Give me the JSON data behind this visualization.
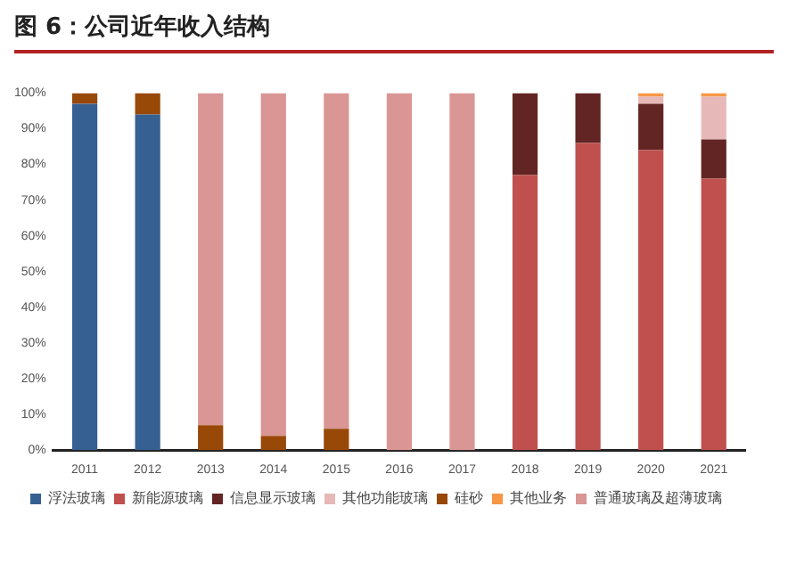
{
  "chart_data": {
    "type": "bar",
    "title": "图 6：公司近年收入结构",
    "stacked": true,
    "legend": "bottom",
    "grid": false,
    "categories": [
      "2011",
      "2012",
      "2013",
      "2014",
      "2015",
      "2016",
      "2017",
      "2018",
      "2019",
      "2020",
      "2021"
    ],
    "series": [
      {
        "name": "浮法玻璃",
        "color": "#376092",
        "values": [
          97,
          94,
          null,
          null,
          null,
          null,
          null,
          null,
          null,
          null,
          null
        ]
      },
      {
        "name": "新能源玻璃",
        "color": "#c0504d",
        "values": [
          null,
          null,
          null,
          null,
          null,
          null,
          null,
          77,
          86,
          84,
          76
        ]
      },
      {
        "name": "信息显示玻璃",
        "color": "#632523",
        "values": [
          null,
          null,
          null,
          null,
          null,
          null,
          null,
          23,
          14,
          13,
          11
        ]
      },
      {
        "name": "其他功能玻璃",
        "color": "#e6b9b8",
        "values": [
          null,
          null,
          null,
          null,
          null,
          null,
          null,
          null,
          null,
          2,
          12
        ]
      },
      {
        "name": "硅砂",
        "color": "#984807",
        "values": [
          3,
          6,
          7,
          4,
          6,
          null,
          null,
          null,
          null,
          null,
          null
        ]
      },
      {
        "name": "其他业务",
        "color": "#f79646",
        "values": [
          null,
          null,
          null,
          null,
          null,
          null,
          null,
          null,
          null,
          1,
          1
        ]
      },
      {
        "name": "普通玻璃及超薄玻璃",
        "color": "#d99694",
        "values": [
          null,
          null,
          93,
          96,
          94,
          100,
          100,
          null,
          null,
          null,
          null
        ]
      }
    ],
    "ylim": [
      0,
      100
    ],
    "yticks": [
      {
        "value": 0,
        "label": "0%"
      },
      {
        "value": 10,
        "label": "10%"
      },
      {
        "value": 20,
        "label": "20%"
      },
      {
        "value": 30,
        "label": "30%"
      },
      {
        "value": 40,
        "label": "40%"
      },
      {
        "value": 50,
        "label": "50%"
      },
      {
        "value": 60,
        "label": "60%"
      },
      {
        "value": 70,
        "label": "70%"
      },
      {
        "value": 80,
        "label": "80%"
      },
      {
        "value": 90,
        "label": "90%"
      },
      {
        "value": 100,
        "label": "100%"
      }
    ]
  }
}
